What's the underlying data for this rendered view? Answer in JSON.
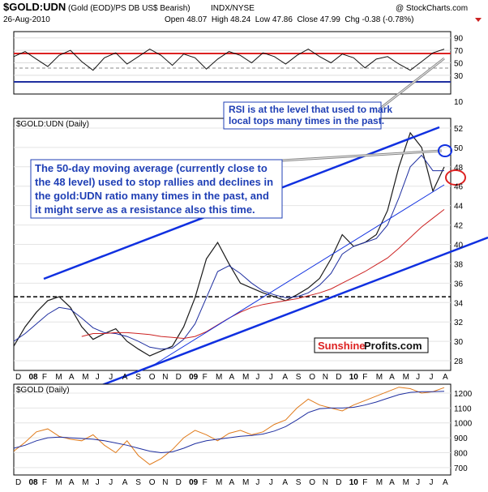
{
  "header": {
    "symbol": "$GOLD:UDN",
    "description": "(Gold (EOD)/PS DB US$ Bearish)",
    "exchange": "INDX/NYSE",
    "site": "@ StockCharts.com",
    "date": "26-Aug-2010",
    "ohlc": "Open 48.07  High 48.24  Low 47.86  Close 47.99  Chg -0.38 (-0.78%)"
  },
  "rsi_panel": {
    "ticks": [
      "90",
      "70",
      "50",
      "30",
      "10"
    ],
    "overbought": 70,
    "oversold": 30
  },
  "main_panel": {
    "label": "$GOLD:UDN (Daily)",
    "y_ticks": [
      "52",
      "50",
      "48",
      "46",
      "44",
      "42",
      "40",
      "38",
      "36",
      "34",
      "32",
      "30",
      "28"
    ],
    "support_level": 34.6
  },
  "gold_panel": {
    "label": "$GOLD (Daily)",
    "y_ticks": [
      "1200",
      "1100",
      "1000",
      "900",
      "800",
      "700"
    ]
  },
  "x_axis": {
    "labels": [
      "D",
      "08",
      "F",
      "M",
      "A",
      "M",
      "J",
      "J",
      "A",
      "S",
      "O",
      "N",
      "D",
      "09",
      "F",
      "M",
      "A",
      "M",
      "J",
      "J",
      "A",
      "S",
      "O",
      "N",
      "D",
      "10",
      "F",
      "M",
      "A",
      "M",
      "J",
      "J",
      "A"
    ]
  },
  "annotations": {
    "rsi_note_line1": "RSI is at the level that used to mark",
    "rsi_note_line2": "local tops many times in the past.",
    "ma_note_line1": "The 50-day moving average (currently close to",
    "ma_note_line2": "the 48 level) used to stop rallies and declines in",
    "ma_note_line3": "the gold:UDN ratio many times in the past, and",
    "ma_note_line4": "it might serve as a resistance also this time."
  },
  "watermark": {
    "part1": "Sunshine",
    "part2": "Profits.com"
  },
  "colors": {
    "price_up": "#1a1a1a",
    "price_down": "#cc2222",
    "ma50": "#1f2fa0",
    "ma200": "#cc2222",
    "trendline": "#1030e0",
    "annotation": "#1f3fb5",
    "gold_line": "#e07a1a",
    "gold_ma": "#1f2fa0"
  },
  "chart_data": [
    {
      "type": "line",
      "series": [
        {
          "values": [
            60,
            68,
            56,
            44,
            62,
            70,
            52,
            38,
            58,
            66,
            48,
            60,
            72,
            62,
            46,
            64,
            58,
            40,
            56,
            68,
            62,
            50,
            66,
            60,
            48,
            62,
            72,
            60,
            50,
            64,
            58,
            42,
            56,
            60,
            48,
            38,
            52,
            66,
            72
          ]
        }
      ],
      "ylim": [
        0,
        100
      ]
    },
    {
      "type": "line",
      "series": [
        {
          "values": [
            29.5,
            31.5,
            33.0,
            34.2,
            34.6,
            33.5,
            31.5,
            30.2,
            30.8,
            31.3,
            30.0,
            29.2,
            28.5,
            29.0,
            29.5,
            31.5,
            34.5,
            38.5,
            40.2,
            38.0,
            36.0,
            35.5,
            35.0,
            34.6,
            34.2,
            34.8,
            35.5,
            36.5,
            38.5,
            41.0,
            39.8,
            40.2,
            41.0,
            43.5,
            48.0,
            51.5,
            50.0,
            45.5,
            47.99
          ]
        },
        {
          "values": [
            30.0,
            30.8,
            31.8,
            32.8,
            33.5,
            33.3,
            32.4,
            31.4,
            30.9,
            30.8,
            30.5,
            30.0,
            29.4,
            29.2,
            29.3,
            30.2,
            31.8,
            34.5,
            37.2,
            37.8,
            37.0,
            36.0,
            35.2,
            34.8,
            34.5,
            34.6,
            35.0,
            35.8,
            37.0,
            39.0,
            39.8,
            40.2,
            40.6,
            42.0,
            44.8,
            48.0,
            49.2,
            47.6,
            47.6
          ]
        },
        {
          "values": [
            null,
            null,
            null,
            null,
            null,
            null,
            30.5,
            30.8,
            30.8,
            30.9,
            30.9,
            30.8,
            30.7,
            30.5,
            30.4,
            30.3,
            30.5,
            31.0,
            31.7,
            32.4,
            33.0,
            33.5,
            33.8,
            34.0,
            34.2,
            34.4,
            34.7,
            35.0,
            35.4,
            36.0,
            36.6,
            37.2,
            37.9,
            38.6,
            39.6,
            40.7,
            41.8,
            42.7,
            43.6
          ]
        }
      ],
      "ylim": [
        27,
        53
      ]
    },
    {
      "type": "line",
      "series": [
        {
          "values": [
            810,
            870,
            940,
            960,
            910,
            890,
            880,
            920,
            850,
            800,
            880,
            780,
            720,
            760,
            820,
            900,
            950,
            920,
            880,
            930,
            950,
            920,
            940,
            990,
            1020,
            1100,
            1160,
            1120,
            1100,
            1080,
            1120,
            1150,
            1180,
            1210,
            1240,
            1230,
            1200,
            1210,
            1237
          ]
        },
        {
          "values": [
            830,
            850,
            880,
            900,
            905,
            900,
            895,
            890,
            880,
            865,
            850,
            830,
            810,
            800,
            805,
            830,
            860,
            880,
            890,
            900,
            910,
            915,
            925,
            945,
            975,
            1020,
            1070,
            1095,
            1100,
            1100,
            1105,
            1120,
            1140,
            1165,
            1190,
            1205,
            1210,
            1210,
            1212
          ]
        }
      ],
      "ylim": [
        650,
        1260
      ]
    }
  ]
}
